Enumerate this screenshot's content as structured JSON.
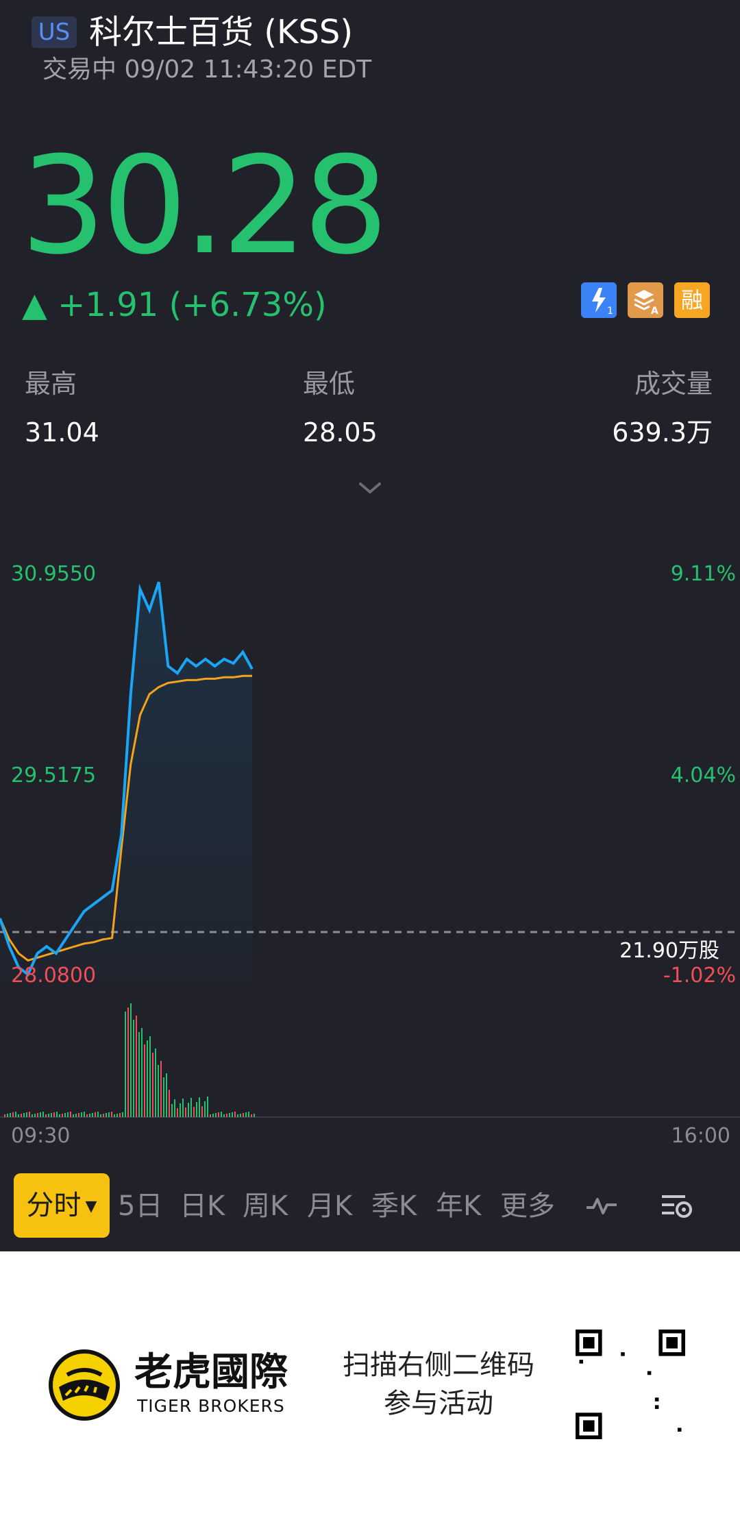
{
  "header": {
    "market_badge": "US",
    "title": "科尔士百货 (KSS)",
    "status": "交易中 09/02 11:43:20 EDT"
  },
  "quote": {
    "price": "30.28",
    "change": "▲ +1.91 (+6.73%)",
    "badges": [
      {
        "icon": "lightning-level1-icon",
        "color": "#3b82f6"
      },
      {
        "icon": "layers-a-icon",
        "color": "#e09a4a"
      },
      {
        "icon": "margin-icon",
        "label": "融",
        "color": "#f5a623"
      }
    ]
  },
  "stats": {
    "high_label": "最高",
    "high_value": "31.04",
    "low_label": "最低",
    "low_value": "28.05",
    "volume_label": "成交量",
    "volume_value": "639.3万"
  },
  "chart": {
    "y_top_price": "30.9550",
    "y_mid_price": "29.5175",
    "y_bottom_price": "28.0800",
    "y_top_pct": "9.11%",
    "y_mid_pct": "4.04%",
    "y_bottom_pct": "-1.02%",
    "volume_label": "21.90万股",
    "time_start": "09:30",
    "time_end": "16:00",
    "colors": {
      "price_line": "#1aa6f5",
      "avg_line": "#f5a31a",
      "up": "#25c16f",
      "down": "#f24e5a"
    }
  },
  "chart_data": {
    "type": "line",
    "x_range": [
      "09:30",
      "16:00"
    ],
    "ylim": [
      28.08,
      30.955
    ],
    "series": [
      {
        "values": [
          28.5,
          28.3,
          28.15,
          28.1,
          28.25,
          28.3,
          28.25,
          28.35,
          28.45,
          28.55,
          28.6,
          28.65,
          28.7,
          29.1,
          30.1,
          30.85,
          30.7,
          30.9,
          30.3,
          30.25,
          30.35,
          30.3,
          30.35,
          30.3,
          30.35,
          30.32,
          30.4,
          30.28
        ]
      },
      {
        "values": [
          28.5,
          28.35,
          28.25,
          28.2,
          28.22,
          28.24,
          28.26,
          28.28,
          28.3,
          28.32,
          28.33,
          28.35,
          28.36,
          29.0,
          29.6,
          29.95,
          30.1,
          30.15,
          30.18,
          30.19,
          30.2,
          30.2,
          30.21,
          30.21,
          30.22,
          30.22,
          30.23,
          30.23
        ]
      }
    ]
  },
  "tabs": {
    "active": "分时",
    "items": [
      "5日",
      "日K",
      "周K",
      "月K",
      "季K",
      "年K",
      "更多"
    ]
  },
  "footer": {
    "brand_cn": "老虎國際",
    "brand_en": "TIGER BROKERS",
    "promo_line1": "扫描右侧二维码",
    "promo_line2": "参与活动"
  }
}
